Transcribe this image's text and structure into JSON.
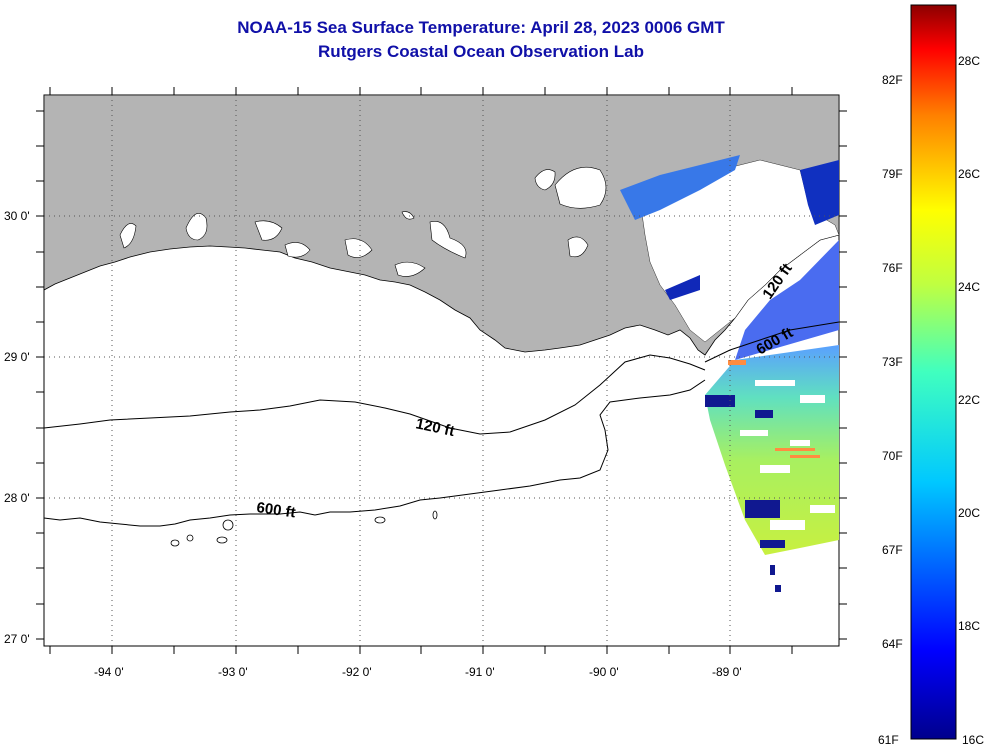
{
  "title": "NOAA-15 Sea Surface Temperature:  April 28, 2023 0006 GMT",
  "subtitle": "Rutgers Coastal Ocean Observation Lab",
  "lat_labels": [
    "30 0'",
    "29 0'",
    "28 0'",
    "27 0'"
  ],
  "lon_labels": [
    "-94 0'",
    "-93 0'",
    "-92 0'",
    "-91 0'",
    "-90 0'",
    "-89 0'"
  ],
  "contours": {
    "c120": "120 ft",
    "c600a": "600 ft",
    "c600b": "600 ft",
    "c120b": "120 ft"
  },
  "colorbar": {
    "f_labels": [
      "82F",
      "79F",
      "76F",
      "73F",
      "70F",
      "67F",
      "64F",
      "61F"
    ],
    "c_labels": [
      "28C",
      "26C",
      "24C",
      "22C",
      "20C",
      "18C",
      "16C"
    ]
  },
  "colors": {
    "land": "#b4b4b4",
    "title": "#1010a8"
  }
}
